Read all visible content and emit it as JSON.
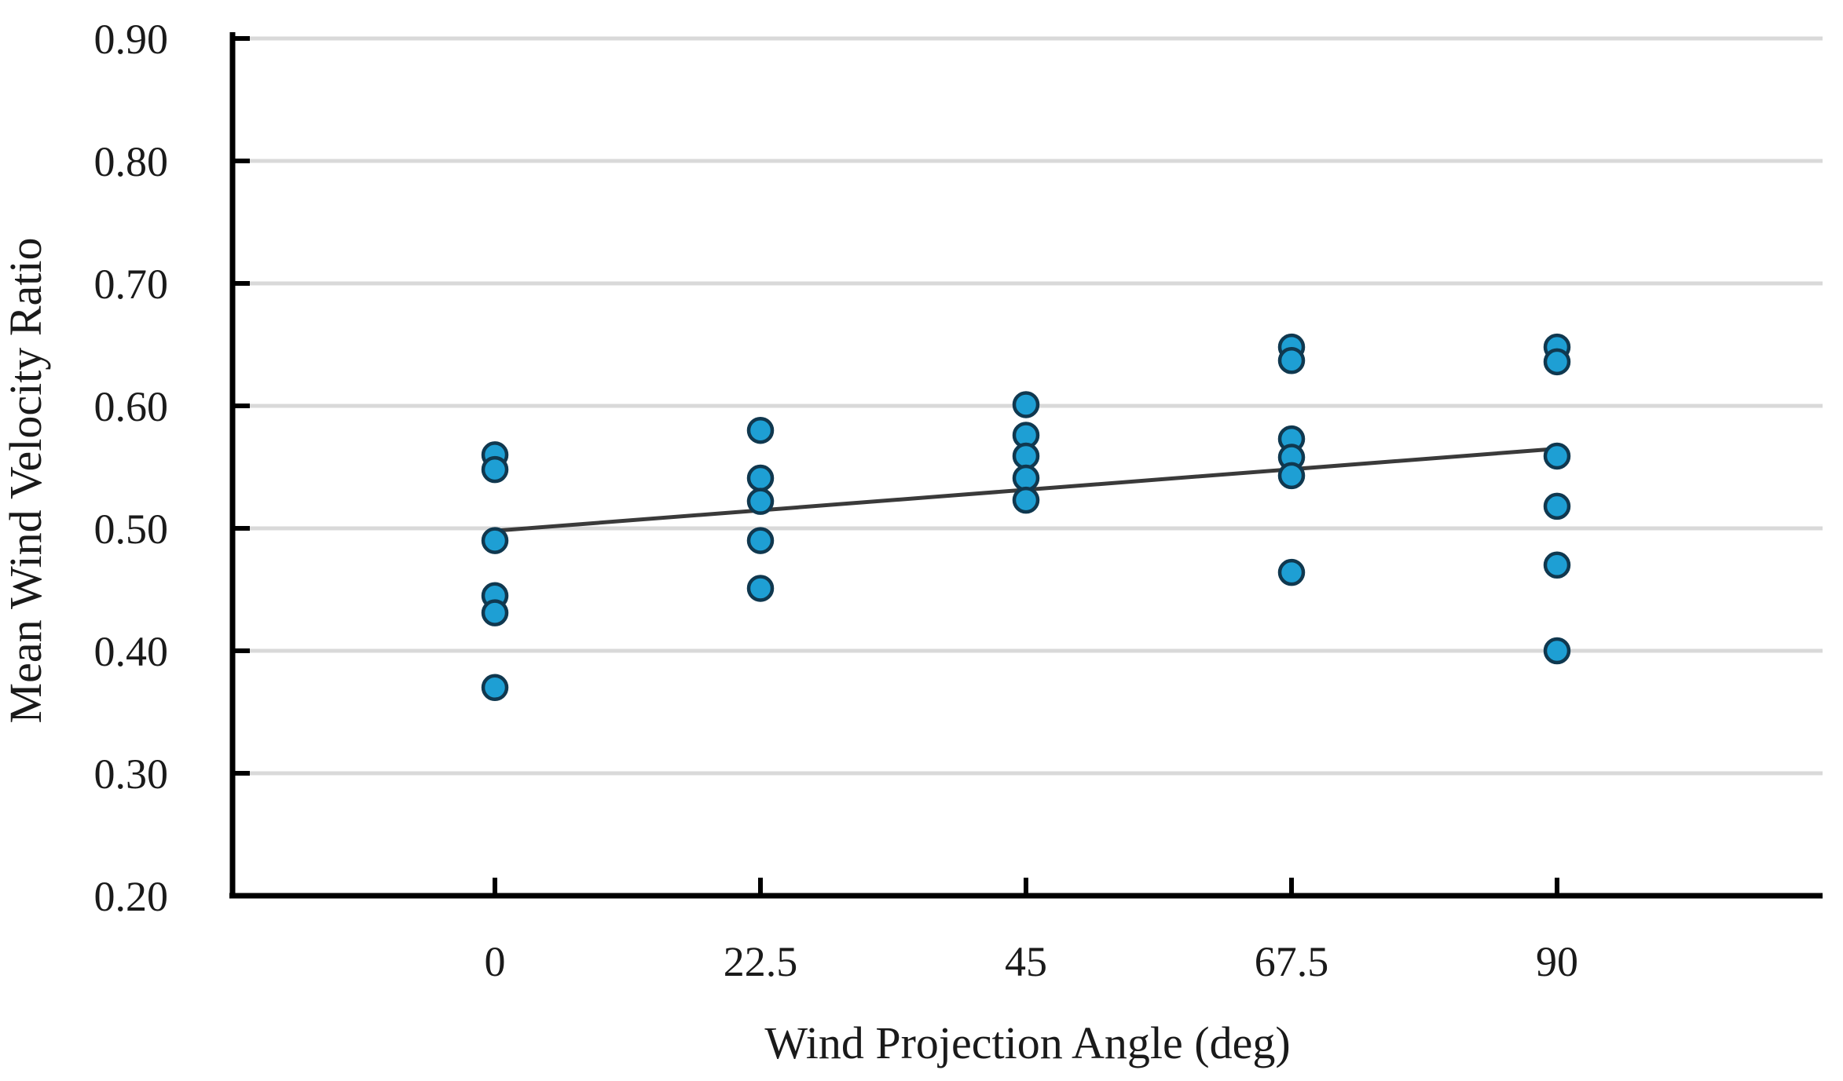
{
  "chart_data": {
    "type": "scatter",
    "title": "",
    "xlabel": "Wind Projection Angle (deg)",
    "ylabel": "Mean Wind Velocity Ratio",
    "x_ticks": [
      0,
      22.5,
      45,
      67.5,
      90
    ],
    "x_tick_labels": [
      "0",
      "22.5",
      "45",
      "67.5",
      "90"
    ],
    "y_ticks": [
      0.2,
      0.3,
      0.4,
      0.5,
      0.6,
      0.7,
      0.8,
      0.9
    ],
    "y_tick_labels": [
      "0.20",
      "0.30",
      "0.40",
      "0.50",
      "0.60",
      "0.70",
      "0.80",
      "0.90"
    ],
    "xlim": [
      -22.5,
      112.5
    ],
    "ylim": [
      0.2,
      0.9
    ],
    "grid": "horizontal",
    "legend": "none",
    "series": [
      {
        "name": "mean-wind-velocity-ratio-observations",
        "points": [
          [
            0,
            0.56
          ],
          [
            0,
            0.548
          ],
          [
            0,
            0.49
          ],
          [
            0,
            0.445
          ],
          [
            0,
            0.431
          ],
          [
            0,
            0.37
          ],
          [
            22.5,
            0.58
          ],
          [
            22.5,
            0.541
          ],
          [
            22.5,
            0.522
          ],
          [
            22.5,
            0.49
          ],
          [
            22.5,
            0.451
          ],
          [
            45,
            0.601
          ],
          [
            45,
            0.576
          ],
          [
            45,
            0.559
          ],
          [
            45,
            0.541
          ],
          [
            45,
            0.523
          ],
          [
            67.5,
            0.648
          ],
          [
            67.5,
            0.637
          ],
          [
            67.5,
            0.573
          ],
          [
            67.5,
            0.558
          ],
          [
            67.5,
            0.543
          ],
          [
            67.5,
            0.464
          ],
          [
            90,
            0.648
          ],
          [
            90,
            0.636
          ],
          [
            90,
            0.559
          ],
          [
            90,
            0.518
          ],
          [
            90,
            0.47
          ],
          [
            90,
            0.4
          ]
        ]
      }
    ],
    "trendline": {
      "x": [
        0,
        90
      ],
      "y": [
        0.498,
        0.565
      ]
    },
    "colors": {
      "point_fill": "#1e9fd4",
      "point_stroke": "#10384f",
      "trend_line": "#3a3a3a",
      "gridline": "#d9d9d9",
      "axis": "#000000",
      "text": "#1a1a1a",
      "background": "#ffffff"
    }
  }
}
